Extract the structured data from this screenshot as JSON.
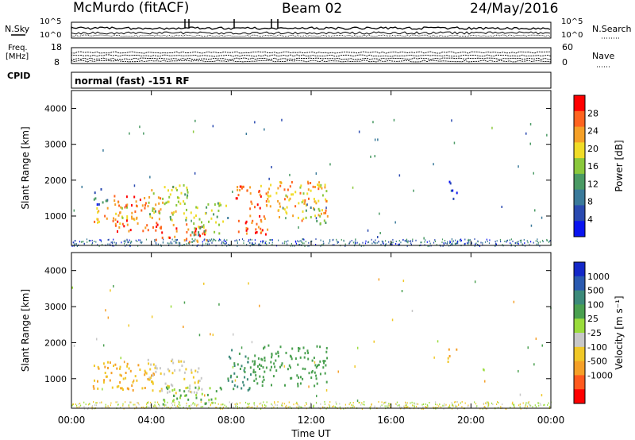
{
  "header": {
    "station": "McMurdo (fitACF)",
    "beam": "Beam 02",
    "date": "24/May/2016"
  },
  "top_panels": {
    "nsky_label": "N.Sky",
    "nsearch_label": "N.Search",
    "nsky_ticks": [
      "10^5",
      "10^0"
    ],
    "nsearch_ticks": [
      "10^5",
      "10^0"
    ],
    "freq_label_1": "Freq.",
    "freq_label_2": "[MHz]",
    "freq_ticks": [
      "18",
      "8"
    ],
    "nave_label": "Nave",
    "nave_ticks": [
      "60",
      "0"
    ],
    "cpid_label": "CPID",
    "cpid_value": "normal (fast) -151 RF"
  },
  "chart_data": [
    {
      "type": "heatmap",
      "name": "power",
      "title": "",
      "ylabel": "Slant Range [km]",
      "xlabel": "",
      "xlim": [
        0,
        24
      ],
      "ylim": [
        180,
        4500
      ],
      "x_ticks": [
        "00:00",
        "04:00",
        "08:00",
        "12:00",
        "16:00",
        "20:00",
        "00:00"
      ],
      "y_ticks": [
        1000,
        2000,
        3000,
        4000
      ],
      "colorbar": {
        "label": "Power [dB]",
        "range": [
          0,
          32
        ],
        "ticks": [
          4,
          8,
          12,
          16,
          20,
          24,
          28
        ],
        "colors": [
          "#0a14f0",
          "#2a4ab0",
          "#3a7a9a",
          "#4a9a64",
          "#8ac83c",
          "#f0dc28",
          "#f5a028",
          "#ff6420",
          "#ff0000"
        ]
      },
      "regions": [
        {
          "t0": 1.0,
          "t1": 1.8,
          "r0": 1300,
          "r1": 1800,
          "value": 8
        },
        {
          "t0": 1.0,
          "t1": 3.0,
          "r0": 800,
          "r1": 1300,
          "value": 22
        },
        {
          "t0": 2.0,
          "t1": 4.5,
          "r0": 600,
          "r1": 1600,
          "value": 26
        },
        {
          "t0": 3.8,
          "t1": 6.0,
          "r0": 900,
          "r1": 1900,
          "value": 18
        },
        {
          "t0": 4.2,
          "t1": 7.0,
          "r0": 300,
          "r1": 800,
          "value": 27
        },
        {
          "t0": 6.0,
          "t1": 7.8,
          "r0": 500,
          "r1": 1400,
          "value": 15
        },
        {
          "t0": 8.2,
          "t1": 9.8,
          "r0": 500,
          "r1": 1900,
          "value": 26
        },
        {
          "t0": 9.5,
          "t1": 12.8,
          "r0": 900,
          "r1": 2000,
          "value": 22
        },
        {
          "t0": 11.5,
          "t1": 12.8,
          "r0": 800,
          "r1": 1300,
          "value": 14
        },
        {
          "t0": 18.8,
          "t1": 19.3,
          "r0": 1500,
          "r1": 2000,
          "value": 6
        }
      ]
    },
    {
      "type": "heatmap",
      "name": "velocity",
      "title": "",
      "ylabel": "Slant Range [km]",
      "xlabel": "Time UT",
      "xlim": [
        0,
        24
      ],
      "ylim": [
        180,
        4500
      ],
      "x_ticks": [
        "00:00",
        "04:00",
        "08:00",
        "12:00",
        "16:00",
        "20:00",
        "00:00"
      ],
      "y_ticks": [
        1000,
        2000,
        3000,
        4000
      ],
      "colorbar": {
        "label": "Velocity [m s⁻¹]",
        "tick_labels": [
          "1000",
          "500",
          "100",
          "25",
          "-25",
          "-100",
          "-500",
          "-1000"
        ],
        "colors": [
          "#1428c8",
          "#2a5ab0",
          "#3c8a7a",
          "#4aa050",
          "#9adc3c",
          "#c8c8c8",
          "#f0c828",
          "#f5a028",
          "#ff5a1e",
          "#ff0000"
        ]
      },
      "regions": [
        {
          "t0": 1.0,
          "t1": 4.2,
          "r0": 700,
          "r1": 1500,
          "value": -100
        },
        {
          "t0": 3.8,
          "t1": 6.5,
          "r0": 600,
          "r1": 1600,
          "value": -25
        },
        {
          "t0": 4.5,
          "t1": 7.5,
          "r0": 300,
          "r1": 800,
          "value": 100
        },
        {
          "t0": 7.8,
          "t1": 9.0,
          "r0": 700,
          "r1": 1900,
          "value": 300
        },
        {
          "t0": 9.0,
          "t1": 12.8,
          "r0": 800,
          "r1": 2000,
          "value": 200
        },
        {
          "t0": 18.8,
          "t1": 19.3,
          "r0": 1500,
          "r1": 1900,
          "value": -100
        }
      ]
    }
  ]
}
